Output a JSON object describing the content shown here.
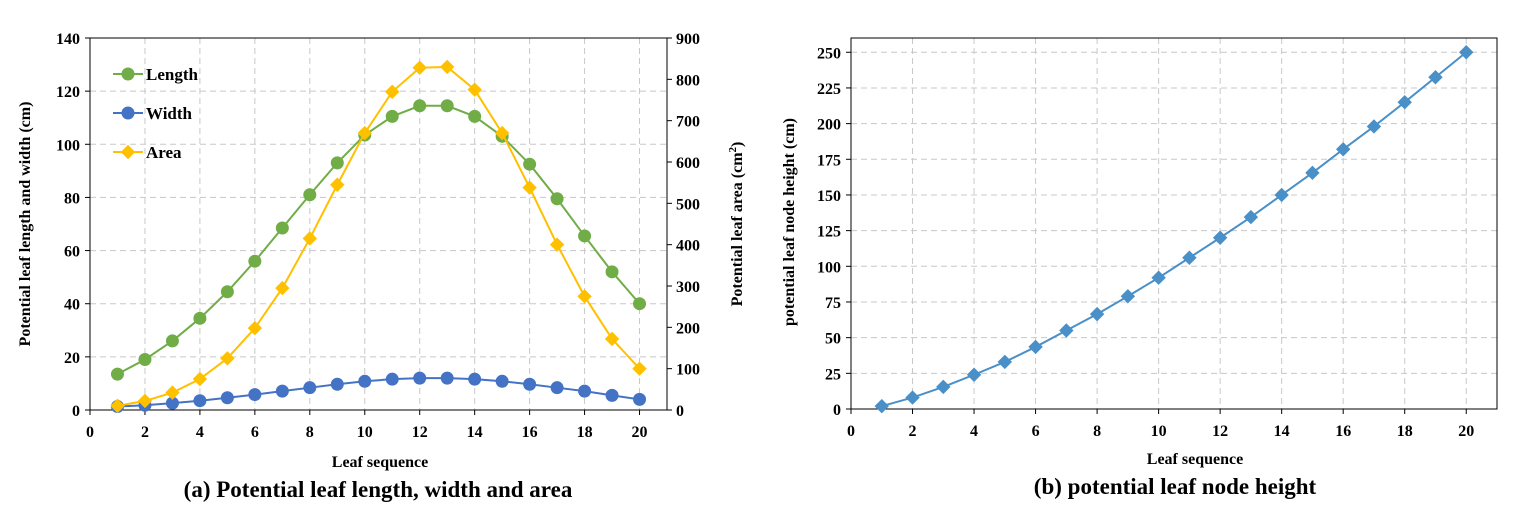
{
  "chart_data": [
    {
      "type": "line",
      "caption": "(a) Potential leaf length, width and area",
      "xlabel": "Leaf sequence",
      "ylabel": "Potential leaf length and width (cm)",
      "y2label_main": "Potential leaf area (cm",
      "y2label_sup": "2",
      "y2label_end": ")",
      "xlim": [
        0,
        21
      ],
      "ylim": [
        0,
        140
      ],
      "y2lim": [
        0,
        900
      ],
      "xticks": [
        0,
        2,
        4,
        6,
        8,
        10,
        12,
        14,
        16,
        18,
        20
      ],
      "yticks": [
        0,
        20,
        40,
        60,
        80,
        100,
        120,
        140
      ],
      "y2ticks": [
        0,
        100,
        200,
        300,
        400,
        500,
        600,
        700,
        800,
        900
      ],
      "grid": true,
      "legend_position": "top-left",
      "x": [
        1,
        2,
        3,
        4,
        5,
        6,
        7,
        8,
        9,
        10,
        11,
        12,
        13,
        14,
        15,
        16,
        17,
        18,
        19,
        20
      ],
      "series": [
        {
          "name": "Length",
          "axis": "left",
          "marker": "circle",
          "color": "#70AD47",
          "values": [
            13.5,
            19,
            26,
            34.5,
            44.5,
            56,
            68.5,
            81,
            93,
            103.5,
            110.5,
            114.5,
            114.5,
            110.5,
            103,
            92.5,
            79.5,
            65.5,
            52,
            40
          ]
        },
        {
          "name": "Width",
          "axis": "left",
          "marker": "circle",
          "color": "#4472C4",
          "values": [
            1.3,
            1.8,
            2.6,
            3.5,
            4.6,
            5.8,
            7.1,
            8.4,
            9.7,
            10.8,
            11.6,
            12,
            12,
            11.6,
            10.8,
            9.7,
            8.4,
            7.1,
            5.5,
            4
          ]
        },
        {
          "name": "Area",
          "axis": "right",
          "marker": "diamond",
          "color": "#FFC000",
          "values": [
            10,
            22,
            42,
            75,
            125,
            198,
            295,
            415,
            545,
            670,
            770,
            828,
            830,
            775,
            670,
            538,
            400,
            275,
            172,
            100
          ]
        }
      ]
    },
    {
      "type": "line",
      "caption": "(b) potential leaf node height",
      "xlabel": "Leaf sequence",
      "ylabel": "potential leaf node height (cm)",
      "xlim": [
        0,
        21
      ],
      "ylim": [
        0,
        260
      ],
      "xticks": [
        0,
        2,
        4,
        6,
        8,
        10,
        12,
        14,
        16,
        18,
        20
      ],
      "yticks": [
        0,
        25,
        50,
        75,
        100,
        125,
        150,
        175,
        200,
        225,
        250
      ],
      "grid": true,
      "x": [
        1,
        2,
        3,
        4,
        5,
        6,
        7,
        8,
        9,
        10,
        11,
        12,
        13,
        14,
        15,
        16,
        17,
        18,
        19,
        20
      ],
      "series": [
        {
          "marker": "diamond",
          "color": "#4A90C8",
          "values": [
            2,
            8,
            15.5,
            24,
            33,
            43.5,
            55,
            66.5,
            79,
            92,
            106,
            120,
            134.5,
            150,
            165.5,
            182,
            198,
            215,
            232.5,
            250
          ]
        }
      ]
    }
  ]
}
